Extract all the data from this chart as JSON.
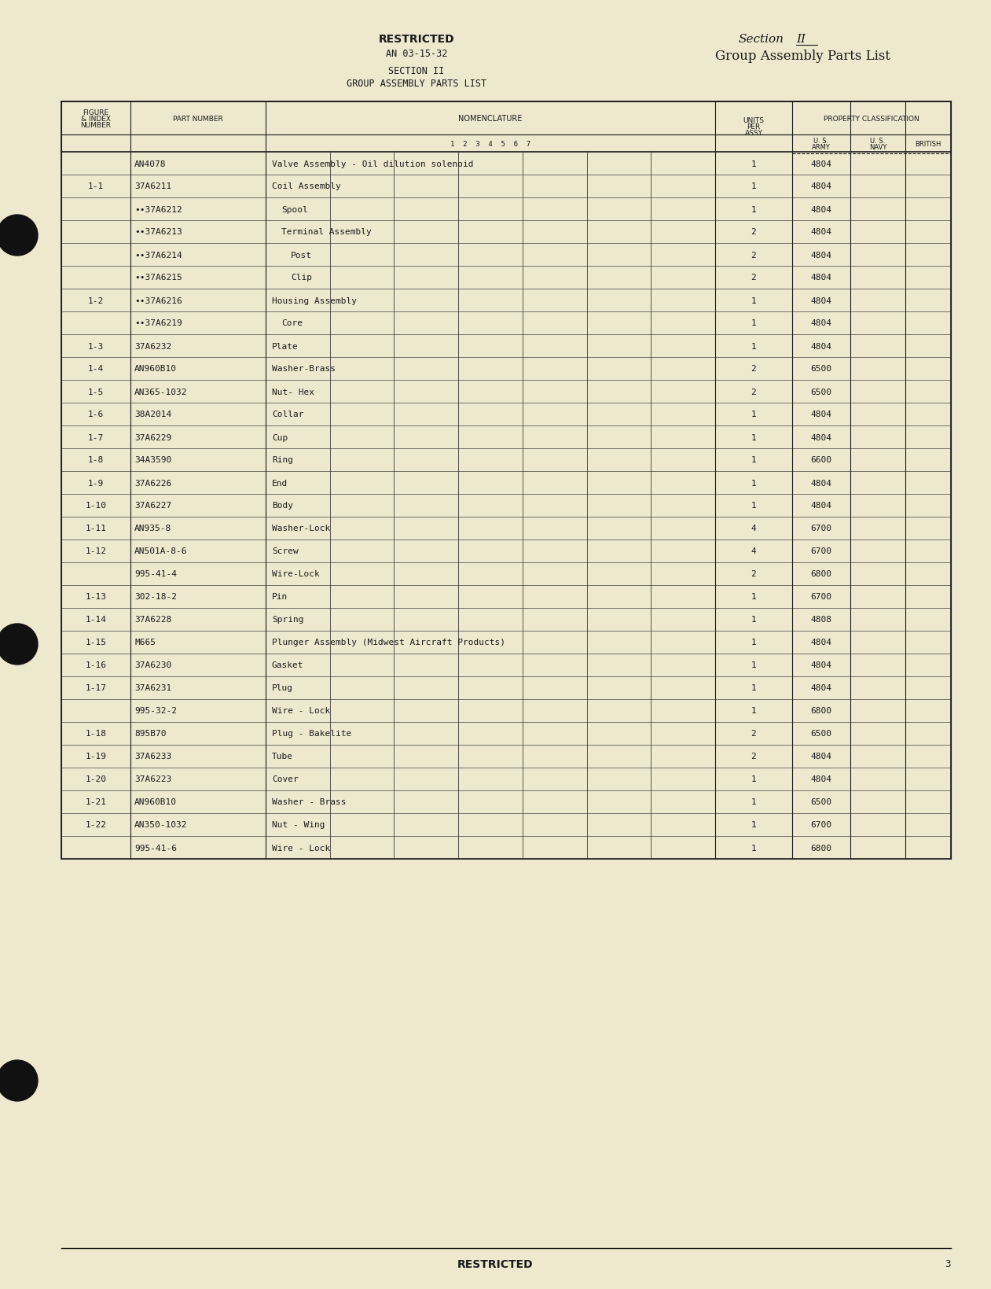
{
  "page_color": "#ede8ce",
  "text_color": "#1a1a1a",
  "rows": [
    {
      "figure": "",
      "part": "AN4078",
      "bullet": false,
      "nom": "Valve Assembly - Oil dilution solenoid",
      "nom_indent": 0,
      "units": "1",
      "army": "4804"
    },
    {
      "figure": "1-1",
      "part": "37A6211",
      "bullet": false,
      "nom": "Coil Assembly",
      "nom_indent": 0,
      "units": "1",
      "army": "4804"
    },
    {
      "figure": "",
      "part": "•37A6212",
      "bullet": true,
      "nom": "Spool",
      "nom_indent": 1,
      "units": "1",
      "army": "4804"
    },
    {
      "figure": "",
      "part": "•37A6213",
      "bullet": true,
      "nom": "Terminal Assembly",
      "nom_indent": 1,
      "units": "2",
      "army": "4804"
    },
    {
      "figure": "",
      "part": "•37A6214",
      "bullet": true,
      "nom": "Post",
      "nom_indent": 2,
      "units": "2",
      "army": "4804"
    },
    {
      "figure": "",
      "part": "•37A6215",
      "bullet": true,
      "nom": "Clip",
      "nom_indent": 2,
      "units": "2",
      "army": "4804"
    },
    {
      "figure": "1-2",
      "part": "•37A6216",
      "bullet": true,
      "nom": "Housing Assembly",
      "nom_indent": 0,
      "units": "1",
      "army": "4804"
    },
    {
      "figure": "",
      "part": "•37A6219",
      "bullet": true,
      "nom": "Core",
      "nom_indent": 1,
      "units": "1",
      "army": "4804"
    },
    {
      "figure": "1-3",
      "part": "37A6232",
      "bullet": false,
      "nom": "Plate",
      "nom_indent": 0,
      "units": "1",
      "army": "4804"
    },
    {
      "figure": "1-4",
      "part": "AN960B10",
      "bullet": false,
      "nom": "Washer-Brass",
      "nom_indent": 0,
      "units": "2",
      "army": "6500"
    },
    {
      "figure": "1-5",
      "part": "AN365-1032",
      "bullet": false,
      "nom": "Nut- Hex",
      "nom_indent": 0,
      "units": "2",
      "army": "6500"
    },
    {
      "figure": "1-6",
      "part": "38A2014",
      "bullet": false,
      "nom": "Collar",
      "nom_indent": 0,
      "units": "1",
      "army": "4804"
    },
    {
      "figure": "1-7",
      "part": "37A6229",
      "bullet": false,
      "nom": "Cup",
      "nom_indent": 0,
      "units": "1",
      "army": "4804"
    },
    {
      "figure": "1-8",
      "part": "34A3590",
      "bullet": false,
      "nom": "Ring",
      "nom_indent": 0,
      "units": "1",
      "army": "6600"
    },
    {
      "figure": "1-9",
      "part": "37A6226",
      "bullet": false,
      "nom": "End",
      "nom_indent": 0,
      "units": "1",
      "army": "4804"
    },
    {
      "figure": "1-10",
      "part": "37A6227",
      "bullet": false,
      "nom": "Body",
      "nom_indent": 0,
      "units": "1",
      "army": "4804"
    },
    {
      "figure": "1-11",
      "part": "AN935-8",
      "bullet": false,
      "nom": "Washer-Lock",
      "nom_indent": 0,
      "units": "4",
      "army": "6700"
    },
    {
      "figure": "1-12",
      "part": "AN501A-8-6",
      "bullet": false,
      "nom": "Screw",
      "nom_indent": 0,
      "units": "4",
      "army": "6700"
    },
    {
      "figure": "",
      "part": "995-41-4",
      "bullet": false,
      "nom": "Wire-Lock",
      "nom_indent": 0,
      "units": "2",
      "army": "6800"
    },
    {
      "figure": "1-13",
      "part": "302-18-2",
      "bullet": false,
      "nom": "Pin",
      "nom_indent": 0,
      "units": "1",
      "army": "6700"
    },
    {
      "figure": "1-14",
      "part": "37A6228",
      "bullet": false,
      "nom": "Spring",
      "nom_indent": 0,
      "units": "1",
      "army": "4808"
    },
    {
      "figure": "1-15",
      "part": "M665",
      "bullet": false,
      "nom": "Plunger Assembly (Midwest Aircraft Products)",
      "nom_indent": 0,
      "units": "1",
      "army": "4804"
    },
    {
      "figure": "1-16",
      "part": "37A6230",
      "bullet": false,
      "nom": "Gasket",
      "nom_indent": 0,
      "units": "1",
      "army": "4804"
    },
    {
      "figure": "1-17",
      "part": "37A6231",
      "bullet": false,
      "nom": "Plug",
      "nom_indent": 0,
      "units": "1",
      "army": "4804"
    },
    {
      "figure": "",
      "part": "995-32-2",
      "bullet": false,
      "nom": "Wire - Lock",
      "nom_indent": 0,
      "units": "1",
      "army": "6800"
    },
    {
      "figure": "1-18",
      "part": "895B70",
      "bullet": false,
      "nom": "Plug - Bakelite",
      "nom_indent": 0,
      "units": "2",
      "army": "6500"
    },
    {
      "figure": "1-19",
      "part": "37A6233",
      "bullet": false,
      "nom": "Tube",
      "nom_indent": 0,
      "units": "2",
      "army": "4804"
    },
    {
      "figure": "1-20",
      "part": "37A6223",
      "bullet": false,
      "nom": "Cover",
      "nom_indent": 0,
      "units": "1",
      "army": "4804"
    },
    {
      "figure": "1-21",
      "part": "AN960B10",
      "bullet": false,
      "nom": "Washer - Brass",
      "nom_indent": 0,
      "units": "1",
      "army": "6500"
    },
    {
      "figure": "1-22",
      "part": "AN350-1032",
      "bullet": false,
      "nom": "Nut - Wing",
      "nom_indent": 0,
      "units": "1",
      "army": "6700"
    },
    {
      "figure": "",
      "part": "995-41-6",
      "bullet": false,
      "nom": "Wire - Lock",
      "nom_indent": 0,
      "units": "1",
      "army": "6800"
    }
  ]
}
